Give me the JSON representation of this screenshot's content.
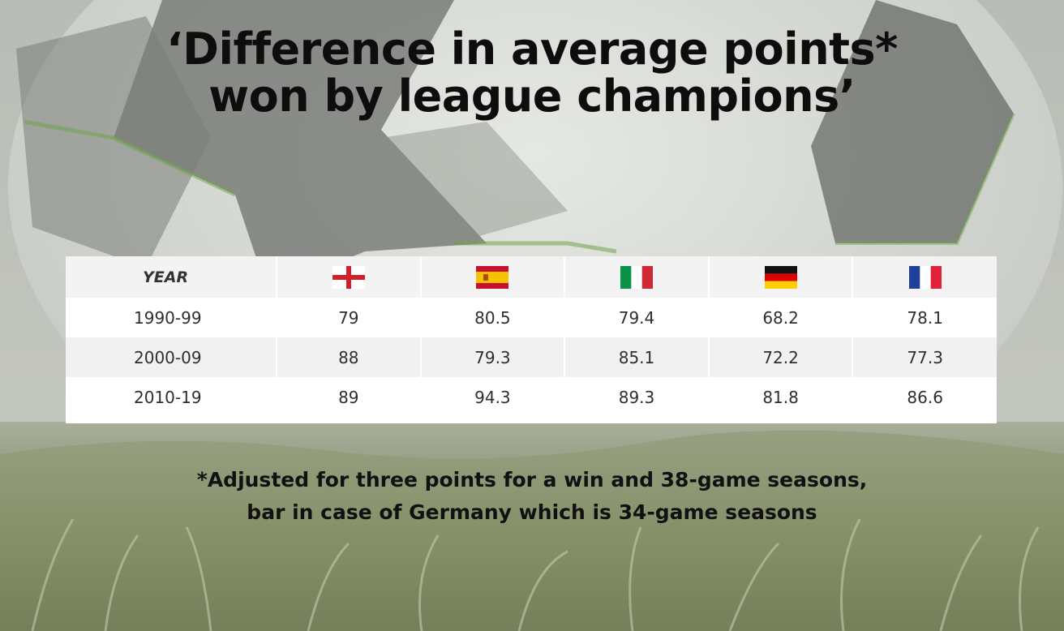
{
  "title_lines": [
    "‘Difference in average points*",
    "won by league champions’"
  ],
  "chart_data": {
    "type": "table",
    "header": {
      "year_label": "YEAR",
      "columns": [
        {
          "flag": "england-flag-icon"
        },
        {
          "flag": "spain-flag-icon"
        },
        {
          "flag": "italy-flag-icon"
        },
        {
          "flag": "germany-flag-icon"
        },
        {
          "flag": "france-flag-icon"
        }
      ]
    },
    "rows": [
      {
        "period": "1990-99",
        "values": [
          "79",
          "80.5",
          "79.4",
          "68.2",
          "78.1"
        ]
      },
      {
        "period": "2000-09",
        "values": [
          "88",
          "79.3",
          "85.1",
          "72.2",
          "77.3"
        ]
      },
      {
        "period": "2010-19",
        "values": [
          "89",
          "94.3",
          "89.3",
          "81.8",
          "86.6"
        ]
      }
    ]
  },
  "footnote_lines": [
    "*Adjusted for three points for a win and 38-game seasons,",
    "bar in case of Germany which is 34-game seasons"
  ],
  "colors": {
    "england_red": "#d21f2b",
    "spain_red": "#c8102e",
    "spain_yellow": "#f3c300",
    "italy_green": "#0a9247",
    "italy_red": "#cf2b37",
    "germany_black": "#111111",
    "germany_red": "#dd0000",
    "germany_gold": "#ffce00",
    "france_blue": "#1f3f9a",
    "france_red": "#e0223a"
  }
}
